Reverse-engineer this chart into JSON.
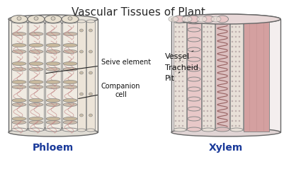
{
  "title": "Vascular Tissues of Plant",
  "title_fontsize": 11,
  "title_color": "#2a2a2a",
  "bg_color": "#ffffff",
  "phloem_label": "Phloem",
  "xylem_label": "Xylem",
  "phloem_label_color": "#1a3a9a",
  "xylem_label_color": "#1a3a9a",
  "annotations": {
    "seive_element": "Seive element",
    "companion_cell": "Companion\ncell",
    "vessel": "Vessel",
    "tracheid": "Tracheid",
    "pit": "Pit"
  },
  "phloem_bg": "#f5f2ee",
  "phloem_tube_face": "#f0ebe2",
  "phloem_tube_edge": "#888888",
  "phloem_plate_color": "#ccbbaa",
  "phloem_vein_color": "#c08080",
  "phloem_cell_face": "#ece6de",
  "xylem_bg": "#f8f0f0",
  "xylem_vessel_face": "#e8c8c8",
  "xylem_vessel_edge": "#888888",
  "xylem_tracheid_face": "#e8e0d8",
  "xylem_dot_face": "#b8a8a8",
  "xylem_spiral_face": "#dcc0c0",
  "xylem_side_face": "#d4a0a0",
  "outline_color": "#666666",
  "ann_fontsize": 7,
  "label_fontsize": 10
}
